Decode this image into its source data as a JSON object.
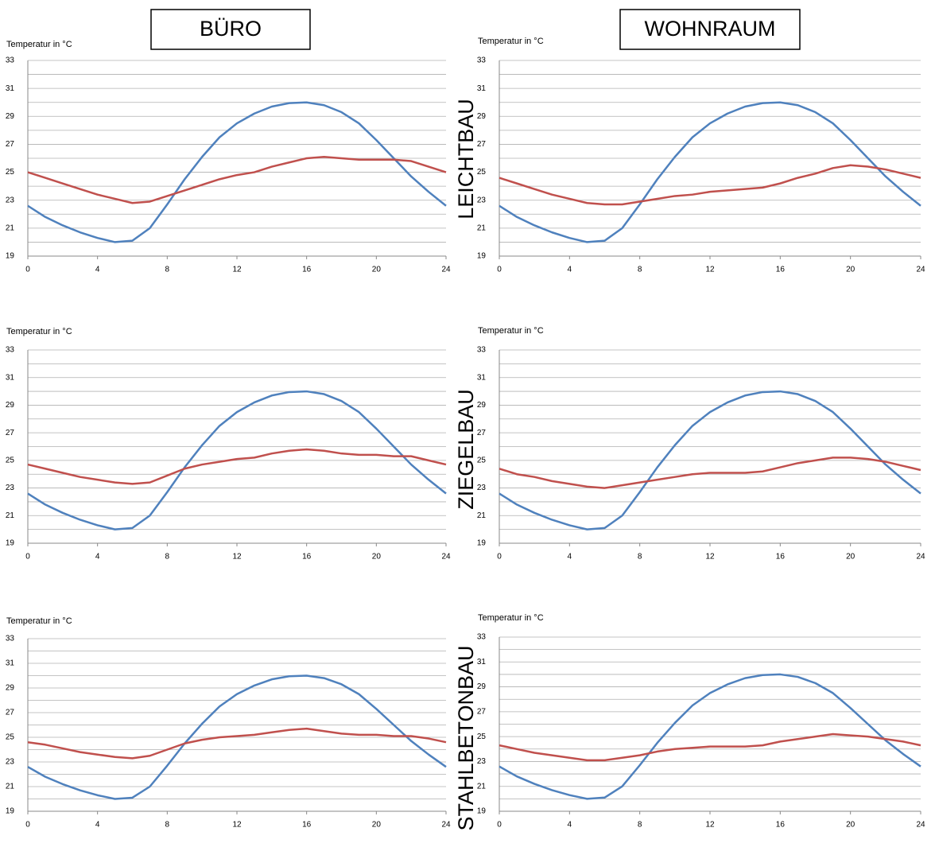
{
  "columns": [
    "BÜRO",
    "WOHNRAUM"
  ],
  "rows": [
    "LEICHTBAU",
    "ZIEGELBAU",
    "STAHLBETONBAU"
  ],
  "chart_data": [
    {
      "type": "line",
      "y_label": "Temperatur in °C",
      "x": [
        0,
        1,
        2,
        3,
        4,
        5,
        6,
        7,
        8,
        9,
        10,
        11,
        12,
        13,
        14,
        15,
        16,
        17,
        18,
        19,
        20,
        21,
        22,
        23,
        24
      ],
      "xlim": [
        0,
        24
      ],
      "xticks": [
        0,
        4,
        8,
        12,
        16,
        20,
        24
      ],
      "ylim": [
        19,
        33
      ],
      "yticks": [
        19,
        21,
        23,
        25,
        27,
        29,
        31,
        33
      ],
      "y_minor_ticks": [
        20,
        22,
        24,
        26,
        28,
        30,
        32
      ],
      "grid": true,
      "series": [
        {
          "color": "#4f81bd",
          "values": [
            22.6,
            21.8,
            21.2,
            20.7,
            20.3,
            20.0,
            20.1,
            21.0,
            22.7,
            24.5,
            26.1,
            27.5,
            28.5,
            29.2,
            29.7,
            29.95,
            30.0,
            29.8,
            29.3,
            28.5,
            27.3,
            26.0,
            24.7,
            23.6,
            22.6
          ]
        },
        {
          "color": "#c0504d",
          "values": [
            25.0,
            24.6,
            24.2,
            23.8,
            23.4,
            23.1,
            22.8,
            22.9,
            23.3,
            23.7,
            24.1,
            24.5,
            24.8,
            25.0,
            25.4,
            25.7,
            26.0,
            26.1,
            26.0,
            25.9,
            25.9,
            25.9,
            25.8,
            25.4,
            25.0
          ]
        }
      ]
    },
    {
      "type": "line",
      "y_label": "Temperatur in °C",
      "x": [
        0,
        1,
        2,
        3,
        4,
        5,
        6,
        7,
        8,
        9,
        10,
        11,
        12,
        13,
        14,
        15,
        16,
        17,
        18,
        19,
        20,
        21,
        22,
        23,
        24
      ],
      "xlim": [
        0,
        24
      ],
      "xticks": [
        0,
        4,
        8,
        12,
        16,
        20,
        24
      ],
      "ylim": [
        19,
        33
      ],
      "yticks": [
        19,
        21,
        23,
        25,
        27,
        29,
        31,
        33
      ],
      "y_minor_ticks": [
        20,
        22,
        24,
        26,
        28,
        30,
        32
      ],
      "grid": true,
      "series": [
        {
          "color": "#4f81bd",
          "values": [
            22.6,
            21.8,
            21.2,
            20.7,
            20.3,
            20.0,
            20.1,
            21.0,
            22.7,
            24.5,
            26.1,
            27.5,
            28.5,
            29.2,
            29.7,
            29.95,
            30.0,
            29.8,
            29.3,
            28.5,
            27.3,
            26.0,
            24.7,
            23.6,
            22.6
          ]
        },
        {
          "color": "#c0504d",
          "values": [
            24.6,
            24.2,
            23.8,
            23.4,
            23.1,
            22.8,
            22.7,
            22.7,
            22.9,
            23.1,
            23.3,
            23.4,
            23.6,
            23.7,
            23.8,
            23.9,
            24.2,
            24.6,
            24.9,
            25.3,
            25.5,
            25.4,
            25.2,
            24.9,
            24.6
          ]
        }
      ]
    },
    {
      "type": "line",
      "y_label": "Temperatur in °C",
      "x": [
        0,
        1,
        2,
        3,
        4,
        5,
        6,
        7,
        8,
        9,
        10,
        11,
        12,
        13,
        14,
        15,
        16,
        17,
        18,
        19,
        20,
        21,
        22,
        23,
        24
      ],
      "xlim": [
        0,
        24
      ],
      "xticks": [
        0,
        4,
        8,
        12,
        16,
        20,
        24
      ],
      "ylim": [
        19,
        33
      ],
      "yticks": [
        19,
        21,
        23,
        25,
        27,
        29,
        31,
        33
      ],
      "y_minor_ticks": [
        20,
        22,
        24,
        26,
        28,
        30,
        32
      ],
      "grid": true,
      "series": [
        {
          "color": "#4f81bd",
          "values": [
            22.6,
            21.8,
            21.2,
            20.7,
            20.3,
            20.0,
            20.1,
            21.0,
            22.7,
            24.5,
            26.1,
            27.5,
            28.5,
            29.2,
            29.7,
            29.95,
            30.0,
            29.8,
            29.3,
            28.5,
            27.3,
            26.0,
            24.7,
            23.6,
            22.6
          ]
        },
        {
          "color": "#c0504d",
          "values": [
            24.7,
            24.4,
            24.1,
            23.8,
            23.6,
            23.4,
            23.3,
            23.4,
            23.9,
            24.4,
            24.7,
            24.9,
            25.1,
            25.2,
            25.5,
            25.7,
            25.8,
            25.7,
            25.5,
            25.4,
            25.4,
            25.3,
            25.3,
            25.0,
            24.7
          ]
        }
      ]
    },
    {
      "type": "line",
      "y_label": "Temperatur in °C",
      "x": [
        0,
        1,
        2,
        3,
        4,
        5,
        6,
        7,
        8,
        9,
        10,
        11,
        12,
        13,
        14,
        15,
        16,
        17,
        18,
        19,
        20,
        21,
        22,
        23,
        24
      ],
      "xlim": [
        0,
        24
      ],
      "xticks": [
        0,
        4,
        8,
        12,
        16,
        20,
        24
      ],
      "ylim": [
        19,
        33
      ],
      "yticks": [
        19,
        21,
        23,
        25,
        27,
        29,
        31,
        33
      ],
      "y_minor_ticks": [
        20,
        22,
        24,
        26,
        28,
        30,
        32
      ],
      "grid": true,
      "series": [
        {
          "color": "#4f81bd",
          "values": [
            22.6,
            21.8,
            21.2,
            20.7,
            20.3,
            20.0,
            20.1,
            21.0,
            22.7,
            24.5,
            26.1,
            27.5,
            28.5,
            29.2,
            29.7,
            29.95,
            30.0,
            29.8,
            29.3,
            28.5,
            27.3,
            26.0,
            24.7,
            23.6,
            22.6
          ]
        },
        {
          "color": "#c0504d",
          "values": [
            24.4,
            24.0,
            23.8,
            23.5,
            23.3,
            23.1,
            23.0,
            23.2,
            23.4,
            23.6,
            23.8,
            24.0,
            24.1,
            24.1,
            24.1,
            24.2,
            24.5,
            24.8,
            25.0,
            25.2,
            25.2,
            25.1,
            24.9,
            24.6,
            24.3
          ]
        }
      ]
    },
    {
      "type": "line",
      "y_label": "Temperatur in °C",
      "x": [
        0,
        1,
        2,
        3,
        4,
        5,
        6,
        7,
        8,
        9,
        10,
        11,
        12,
        13,
        14,
        15,
        16,
        17,
        18,
        19,
        20,
        21,
        22,
        23,
        24
      ],
      "xlim": [
        0,
        24
      ],
      "xticks": [
        0,
        4,
        8,
        12,
        16,
        20,
        24
      ],
      "ylim": [
        19,
        33
      ],
      "yticks": [
        19,
        21,
        23,
        25,
        27,
        29,
        31,
        33
      ],
      "y_minor_ticks": [
        20,
        22,
        24,
        26,
        28,
        30,
        32
      ],
      "grid": true,
      "series": [
        {
          "color": "#4f81bd",
          "values": [
            22.6,
            21.8,
            21.2,
            20.7,
            20.3,
            20.0,
            20.1,
            21.0,
            22.7,
            24.5,
            26.1,
            27.5,
            28.5,
            29.2,
            29.7,
            29.95,
            30.0,
            29.8,
            29.3,
            28.5,
            27.3,
            26.0,
            24.7,
            23.6,
            22.6
          ]
        },
        {
          "color": "#c0504d",
          "values": [
            24.6,
            24.4,
            24.1,
            23.8,
            23.6,
            23.4,
            23.3,
            23.5,
            24.0,
            24.5,
            24.8,
            25.0,
            25.1,
            25.2,
            25.4,
            25.6,
            25.7,
            25.5,
            25.3,
            25.2,
            25.2,
            25.1,
            25.1,
            24.9,
            24.6
          ]
        }
      ]
    },
    {
      "type": "line",
      "y_label": "Temperatur in °C",
      "x": [
        0,
        1,
        2,
        3,
        4,
        5,
        6,
        7,
        8,
        9,
        10,
        11,
        12,
        13,
        14,
        15,
        16,
        17,
        18,
        19,
        20,
        21,
        22,
        23,
        24
      ],
      "xlim": [
        0,
        24
      ],
      "xticks": [
        0,
        4,
        8,
        12,
        16,
        20,
        24
      ],
      "ylim": [
        19,
        33
      ],
      "yticks": [
        19,
        21,
        23,
        25,
        27,
        29,
        31,
        33
      ],
      "y_minor_ticks": [
        20,
        22,
        24,
        26,
        28,
        30,
        32
      ],
      "grid": true,
      "series": [
        {
          "color": "#4f81bd",
          "values": [
            22.6,
            21.8,
            21.2,
            20.7,
            20.3,
            20.0,
            20.1,
            21.0,
            22.7,
            24.5,
            26.1,
            27.5,
            28.5,
            29.2,
            29.7,
            29.95,
            30.0,
            29.8,
            29.3,
            28.5,
            27.3,
            26.0,
            24.7,
            23.6,
            22.6
          ]
        },
        {
          "color": "#c0504d",
          "values": [
            24.3,
            24.0,
            23.7,
            23.5,
            23.3,
            23.1,
            23.1,
            23.3,
            23.5,
            23.8,
            24.0,
            24.1,
            24.2,
            24.2,
            24.2,
            24.3,
            24.6,
            24.8,
            25.0,
            25.2,
            25.1,
            25.0,
            24.8,
            24.6,
            24.3
          ]
        }
      ]
    }
  ]
}
